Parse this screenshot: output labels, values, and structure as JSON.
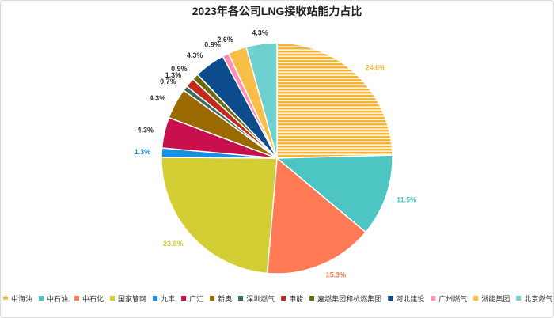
{
  "chart_data": {
    "type": "pie",
    "title": "2023年各公司LNG接收站能力占比",
    "legend_position": "bottom",
    "slices": [
      {
        "name": "中海油",
        "value": 24.6,
        "label": "24.6%",
        "color": "#F5B533",
        "pattern": "stripes"
      },
      {
        "name": "中石油",
        "value": 11.5,
        "label": "11.5%",
        "color": "#4DC5C3"
      },
      {
        "name": "中石化",
        "value": 15.3,
        "label": "15.3%",
        "color": "#FF7A55"
      },
      {
        "name": "国家管网",
        "value": 23.8,
        "label": "23.8%",
        "color": "#D2CE34"
      },
      {
        "name": "九丰",
        "value": 1.3,
        "label": "1.3%",
        "color": "#1A8FE0"
      },
      {
        "name": "广汇",
        "value": 4.3,
        "label": "4.3%",
        "color": "#C8104D"
      },
      {
        "name": "新奥",
        "value": 4.3,
        "label": "4.3%",
        "color": "#9A6A00"
      },
      {
        "name": "深圳燃气",
        "value": 0.7,
        "label": "0.7%",
        "color": "#3A6A63"
      },
      {
        "name": "申能",
        "value": 1.3,
        "label": "1.3%",
        "color": "#C32A1E"
      },
      {
        "name": "嘉燃集团和杭燃集团",
        "value": 0.9,
        "label": "0.9%",
        "color": "#6E6A10"
      },
      {
        "name": "河北建设",
        "value": 4.3,
        "label": "4.3%",
        "color": "#0D4C8C"
      },
      {
        "name": "广州燃气",
        "value": 0.9,
        "label": "0.9%",
        "color": "#FF8FB4"
      },
      {
        "name": "浙能集团",
        "value": 2.6,
        "label": "2.6%",
        "color": "#F9BE48"
      },
      {
        "name": "北京燃气",
        "value": 4.3,
        "label": "4.3%",
        "color": "#6ED0CF"
      }
    ]
  }
}
